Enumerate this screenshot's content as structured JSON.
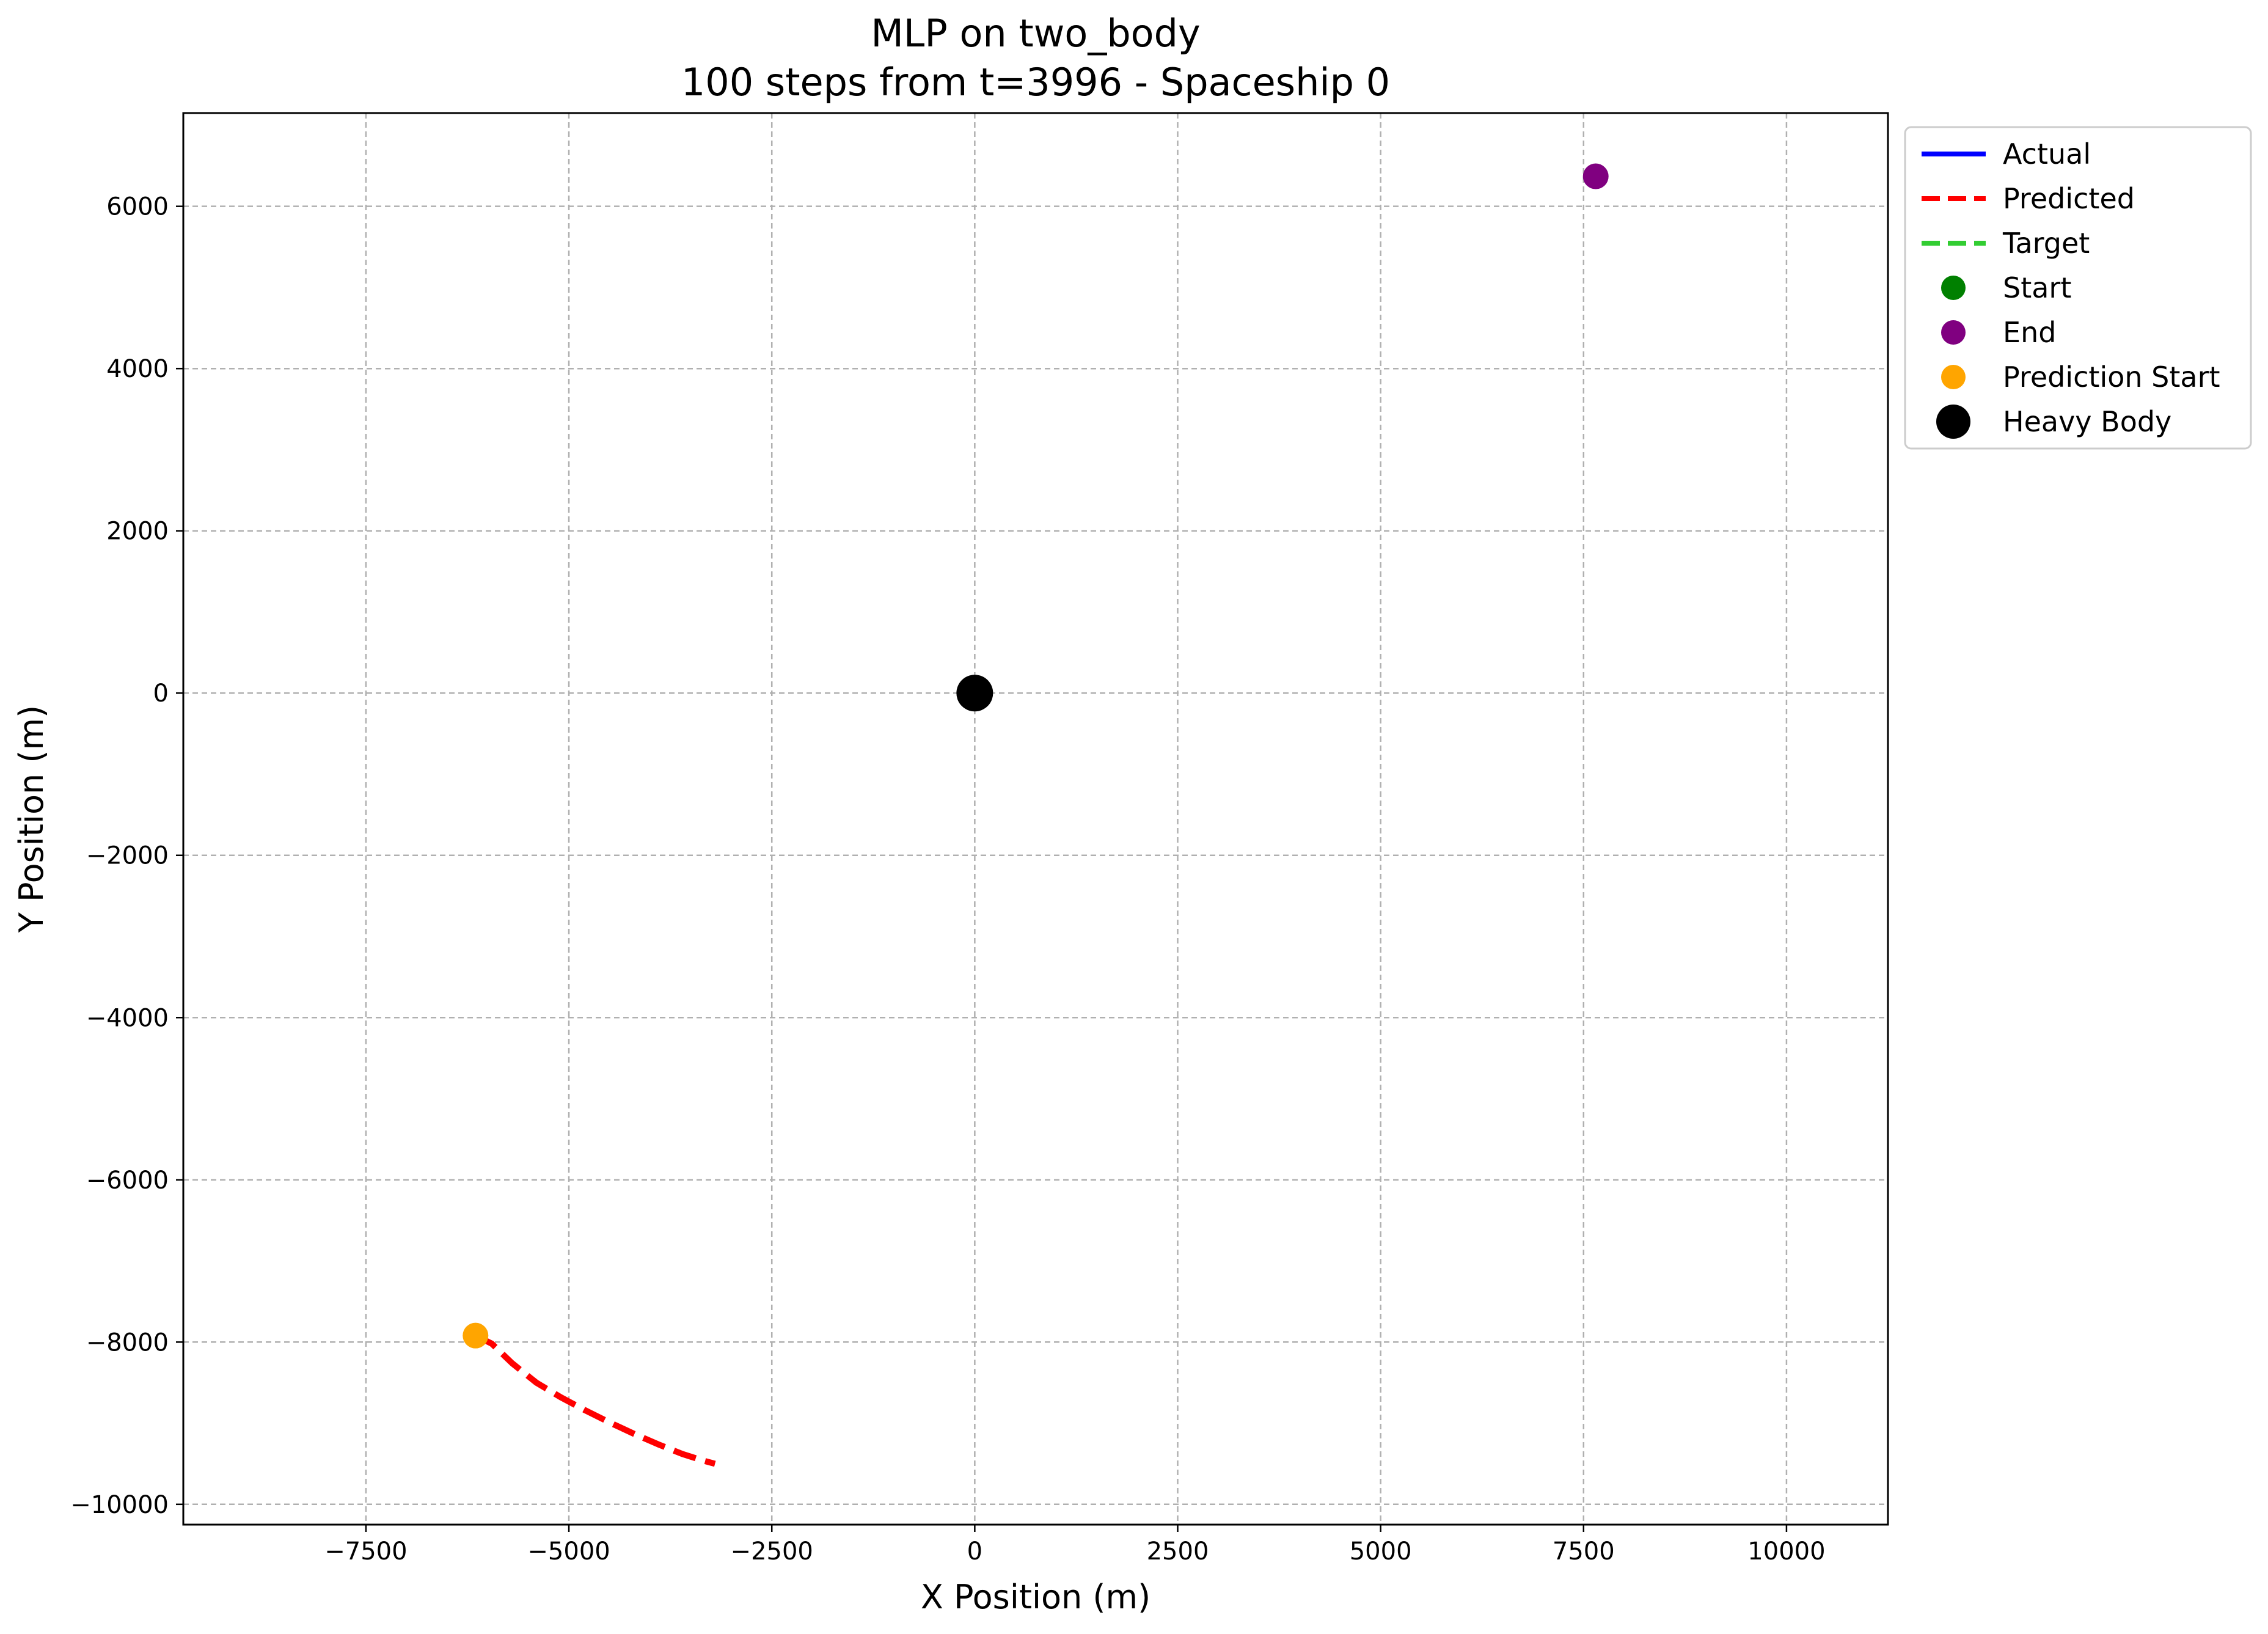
{
  "chart_data": {
    "type": "line",
    "title": "MLP on two_body",
    "subtitle": "100 steps from t=3996 - Spaceship 0",
    "xlabel": "X Position (m)",
    "ylabel": "Y Position (m)",
    "xlim": [
      -9750,
      11250
    ],
    "ylim": [
      -10250,
      7150
    ],
    "xticks": [
      -7500,
      -5000,
      -2500,
      0,
      2500,
      5000,
      7500,
      10000
    ],
    "yticks": [
      -10000,
      -8000,
      -6000,
      -4000,
      -2000,
      0,
      2000,
      4000,
      6000
    ],
    "grid": true,
    "legend_position": "outside-top-right",
    "series": [
      {
        "name": "Actual",
        "kind": "line",
        "style": "solid",
        "color": "#0000ff",
        "points": []
      },
      {
        "name": "Predicted",
        "kind": "line",
        "style": "dashed",
        "color": "#ff0000",
        "points": [
          [
            -6150,
            -7920
          ],
          [
            -5950,
            -8020
          ],
          [
            -5700,
            -8260
          ],
          [
            -5400,
            -8500
          ],
          [
            -5100,
            -8680
          ],
          [
            -4800,
            -8840
          ],
          [
            -4500,
            -8990
          ],
          [
            -4200,
            -9130
          ],
          [
            -3900,
            -9260
          ],
          [
            -3600,
            -9380
          ],
          [
            -3350,
            -9460
          ],
          [
            -3200,
            -9500
          ]
        ]
      },
      {
        "name": "Target",
        "kind": "line",
        "style": "dashed",
        "color": "#32cd32",
        "points": []
      },
      {
        "name": "Start",
        "kind": "marker",
        "color": "#008000",
        "points": []
      },
      {
        "name": "End",
        "kind": "marker",
        "color": "#800080",
        "points": [
          [
            7650,
            6370
          ]
        ]
      },
      {
        "name": "Prediction Start",
        "kind": "marker",
        "color": "#ffa500",
        "points": [
          [
            -6150,
            -7920
          ]
        ]
      },
      {
        "name": "Heavy Body",
        "kind": "marker",
        "color": "#000000",
        "points": [
          [
            0,
            0
          ]
        ]
      }
    ]
  }
}
